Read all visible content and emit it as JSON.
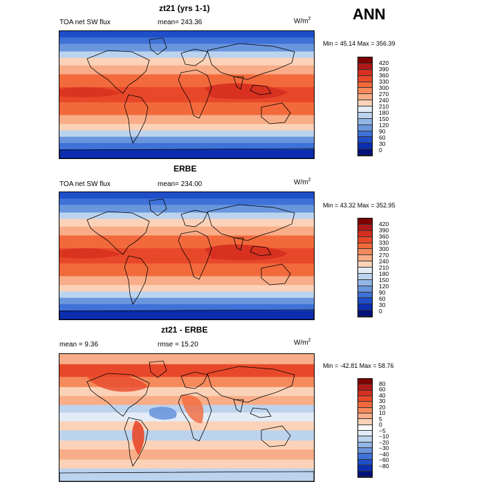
{
  "season": "ANN",
  "panels": [
    {
      "title": "zt21 (yrs 1-1)",
      "variable": "TOA net SW flux",
      "stat_text": "mean=  243.36",
      "units": "W/m",
      "units_exp": "2",
      "minmax": "Min =  45.14 Max =  356.39",
      "colorbar": {
        "labels": [
          "420",
          "390",
          "360",
          "330",
          "300",
          "270",
          "240",
          "210",
          "180",
          "150",
          "120",
          "90",
          "60",
          "30",
          "0"
        ],
        "colors": [
          "#7f0000",
          "#b01818",
          "#d62f1f",
          "#e8482a",
          "#f26a3c",
          "#f58a5c",
          "#f8ad88",
          "#fbd2b8",
          "#e3ecf6",
          "#bcd3ee",
          "#93b6e6",
          "#6a96dd",
          "#3f72d8",
          "#1f4ec9",
          "#0b2eb0",
          "#03127a"
        ]
      },
      "mean_value": 243.36,
      "min_value": 45.14,
      "max_value": 356.39
    },
    {
      "title": "ERBE",
      "variable": "TOA net SW flux",
      "stat_text": "mean= 234.00",
      "units": "W/m",
      "units_exp": "2",
      "minmax": "Min =  43.32 Max =  352.95",
      "colorbar": {
        "labels": [
          "420",
          "390",
          "360",
          "330",
          "300",
          "270",
          "240",
          "210",
          "180",
          "150",
          "120",
          "90",
          "60",
          "30",
          "0"
        ],
        "colors": [
          "#7f0000",
          "#b01818",
          "#d62f1f",
          "#e8482a",
          "#f26a3c",
          "#f58a5c",
          "#f8ad88",
          "#fbd2b8",
          "#e3ecf6",
          "#bcd3ee",
          "#93b6e6",
          "#6a96dd",
          "#3f72d8",
          "#1f4ec9",
          "#0b2eb0",
          "#03127a"
        ]
      },
      "mean_value": 234.0,
      "min_value": 43.32,
      "max_value": 352.95
    },
    {
      "title": "zt21 - ERBE",
      "variable": "mean =   9.36",
      "stat_text": "rmse =  15.20",
      "units": "W/m",
      "units_exp": "2",
      "minmax": "Min = -42.81 Max =  58.76",
      "colorbar": {
        "labels": [
          "80",
          "60",
          "40",
          "30",
          "20",
          "10",
          "5",
          "0",
          "−5",
          "−10",
          "−20",
          "−30",
          "−40",
          "−60",
          "−80"
        ],
        "colors": [
          "#7f0000",
          "#b01818",
          "#d62f1f",
          "#e8482a",
          "#f26a3c",
          "#f58a5c",
          "#f8ad88",
          "#fbd2b8",
          "#ffffff",
          "#e3ecf6",
          "#bcd3ee",
          "#93b6e6",
          "#6a96dd",
          "#3f72d8",
          "#1f4ec9",
          "#0b2eb0",
          "#03127a"
        ]
      },
      "mean_value": 9.36,
      "rmse_value": 15.2,
      "min_value": -42.81,
      "max_value": 58.76
    }
  ],
  "chart_data": [
    {
      "type": "heatmap",
      "title": "zt21 (yrs 1-1)",
      "subtitle": "TOA net SW flux",
      "units": "W/m2",
      "mean": 243.36,
      "min": 45.14,
      "max": 356.39,
      "levels": [
        0,
        30,
        60,
        90,
        120,
        150,
        180,
        210,
        240,
        270,
        300,
        330,
        360,
        390,
        420
      ],
      "colormap": "blue-white-red"
    },
    {
      "type": "heatmap",
      "title": "ERBE",
      "subtitle": "TOA net SW flux",
      "units": "W/m2",
      "mean": 234.0,
      "min": 43.32,
      "max": 352.95,
      "levels": [
        0,
        30,
        60,
        90,
        120,
        150,
        180,
        210,
        240,
        270,
        300,
        330,
        360,
        390,
        420
      ],
      "colormap": "blue-white-red"
    },
    {
      "type": "heatmap",
      "title": "zt21 - ERBE",
      "units": "W/m2",
      "mean": 9.36,
      "rmse": 15.2,
      "min": -42.81,
      "max": 58.76,
      "levels": [
        -80,
        -60,
        -40,
        -30,
        -20,
        -10,
        -5,
        0,
        5,
        10,
        20,
        30,
        40,
        60,
        80
      ],
      "colormap": "blue-white-red"
    }
  ]
}
